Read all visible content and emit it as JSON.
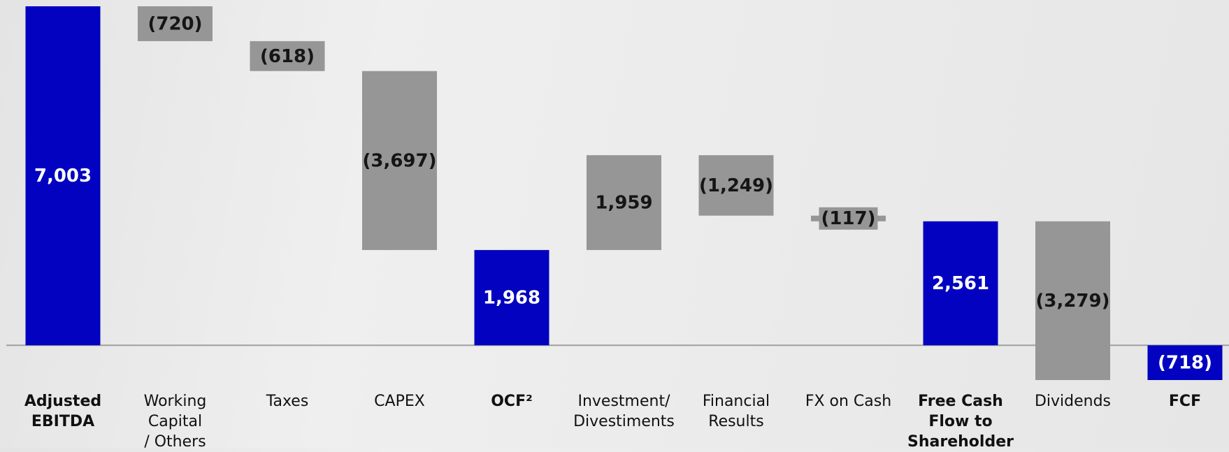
{
  "chart_data": {
    "type": "waterfall",
    "categories": [
      "Adjusted\nEBITDA",
      "Working Capital\n/ Others",
      "Taxes",
      "CAPEX",
      "OCF²",
      "Investment/\nDivestiments",
      "Financial\nResults",
      "FX on Cash",
      "Free Cash\nFlow to\nShareholder",
      "Dividends",
      "FCF"
    ],
    "values": [
      7003,
      -720,
      -618,
      -3697,
      1968,
      1959,
      -1249,
      -117,
      2561,
      -3279,
      -718
    ],
    "value_labels": [
      "7,003",
      "(720)",
      "(618)",
      "(3,697)",
      "1,968",
      "1,959",
      "(1,249)",
      "(117)",
      "2,561",
      "(3,279)",
      "(718)"
    ],
    "totals": [
      true,
      false,
      false,
      false,
      true,
      false,
      false,
      false,
      true,
      false,
      true
    ],
    "colors": [
      "#0202c0",
      "#969696",
      "#969696",
      "#969696",
      "#0202c0",
      "#969696",
      "#969696",
      "#969696",
      "#0202c0",
      "#969696",
      "#0202c0"
    ]
  }
}
